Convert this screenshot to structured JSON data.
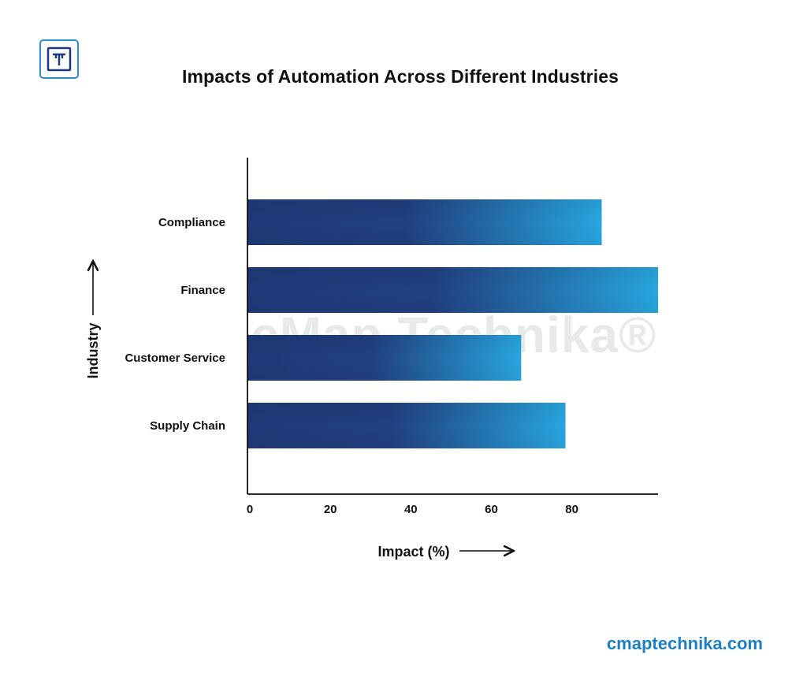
{
  "brand": {
    "logo_icon": "t-logo-icon",
    "logo_color": "#2c8fcb",
    "watermark": "cMap Technika®",
    "website": "cmaptechnika.com",
    "website_color": "#1b7fc4"
  },
  "chart_data": {
    "type": "bar",
    "orientation": "horizontal",
    "title": "Impacts of Automation Across Different Industries",
    "xlabel": "Impact (%)",
    "ylabel": "Industry",
    "categories": [
      "Compliance",
      "Finance",
      "Customer Service",
      "Supply Chain"
    ],
    "values": [
      88,
      102,
      68,
      79
    ],
    "xticks": [
      0,
      20,
      40,
      60,
      80
    ],
    "xlim": [
      0,
      102
    ],
    "grid": false,
    "legend": "none",
    "colors": {
      "bar_start": "#1f3a78",
      "bar_end": "#27a6e0"
    }
  }
}
